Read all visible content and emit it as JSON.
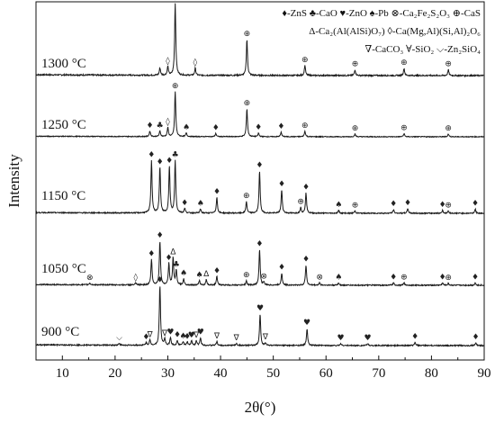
{
  "chart_data": {
    "type": "line",
    "xlabel": "2θ(°)",
    "ylabel": "Intensity",
    "xlim": [
      5,
      90
    ],
    "xticks": [
      "10",
      "20",
      "30",
      "40",
      "50",
      "60",
      "70",
      "80",
      "90"
    ],
    "xtick_values": [
      10,
      20,
      30,
      40,
      50,
      60,
      70,
      80,
      90
    ],
    "grid": false,
    "legend_placement": "top-right",
    "phases": [
      {
        "symbol": "♦",
        "label": "-ZnS",
        "marker_icon": "diamond-icon"
      },
      {
        "symbol": "♣",
        "label": "-CaO",
        "marker_icon": "club-icon"
      },
      {
        "symbol": "♥",
        "label": "-ZnO",
        "marker_icon": "heart-icon"
      },
      {
        "symbol": "♠",
        "label": "-Pb",
        "marker_icon": "spade-icon"
      },
      {
        "symbol": "⊗",
        "label": "-Ca₂Fe₂S₂O₃",
        "marker_icon": "circle-times-icon"
      },
      {
        "symbol": "⊕",
        "label": "-CaS",
        "marker_icon": "circle-plus-icon"
      },
      {
        "symbol": "Δ",
        "label": "-Ca₂(Al(AlSi)O₇)",
        "marker_icon": "triangle-icon"
      },
      {
        "symbol": "◊",
        "label": "-Ca(Mg,Al)(Si,Al)₂O₆",
        "marker_icon": "lozenge-icon"
      },
      {
        "symbol": "∇",
        "label": "-CaCO₃",
        "marker_icon": "nabla-icon"
      },
      {
        "symbol": "∀",
        "label": "-SiO₂",
        "marker_icon": "forall-icon"
      },
      {
        "symbol": "⌵",
        "label": "-Zn₂SiO₄",
        "marker_icon": "chevron-icon"
      }
    ],
    "series": [
      {
        "name": "1300 °C",
        "peaks": [
          {
            "x": 28.5,
            "h": 0.1
          },
          {
            "x": 30.0,
            "h": 0.12
          },
          {
            "x": 31.4,
            "h": 1.0
          },
          {
            "x": 35.2,
            "h": 0.1
          },
          {
            "x": 45.0,
            "h": 0.5
          },
          {
            "x": 56.0,
            "h": 0.14
          },
          {
            "x": 65.5,
            "h": 0.08
          },
          {
            "x": 74.8,
            "h": 0.1
          },
          {
            "x": 83.2,
            "h": 0.08
          }
        ],
        "markers": [
          {
            "x": 31.4,
            "s": "⊕"
          },
          {
            "x": 30.0,
            "s": "◊"
          },
          {
            "x": 35.2,
            "s": "◊"
          },
          {
            "x": 45.0,
            "s": "⊕"
          },
          {
            "x": 56.0,
            "s": "⊕"
          },
          {
            "x": 65.5,
            "s": "⊕"
          },
          {
            "x": 74.8,
            "s": "⊕"
          },
          {
            "x": 83.2,
            "s": "⊕"
          }
        ]
      },
      {
        "name": "1250 °C",
        "peaks": [
          {
            "x": 26.6,
            "h": 0.12
          },
          {
            "x": 28.5,
            "h": 0.12
          },
          {
            "x": 30.0,
            "h": 0.2
          },
          {
            "x": 31.4,
            "h": 1.0
          },
          {
            "x": 33.5,
            "h": 0.08
          },
          {
            "x": 39.1,
            "h": 0.07
          },
          {
            "x": 45.0,
            "h": 0.62
          },
          {
            "x": 47.2,
            "h": 0.08
          },
          {
            "x": 51.5,
            "h": 0.1
          },
          {
            "x": 56.0,
            "h": 0.12
          },
          {
            "x": 65.5,
            "h": 0.06
          },
          {
            "x": 74.8,
            "h": 0.07
          },
          {
            "x": 83.2,
            "h": 0.06
          }
        ],
        "markers": [
          {
            "x": 26.6,
            "s": "♦"
          },
          {
            "x": 28.5,
            "s": "♣"
          },
          {
            "x": 30.0,
            "s": "◊"
          },
          {
            "x": 31.4,
            "s": "⊕"
          },
          {
            "x": 33.5,
            "s": "♠"
          },
          {
            "x": 39.1,
            "s": "♦"
          },
          {
            "x": 45.0,
            "s": "⊕"
          },
          {
            "x": 47.2,
            "s": "♦"
          },
          {
            "x": 51.5,
            "s": "♦"
          },
          {
            "x": 56.0,
            "s": "⊕"
          },
          {
            "x": 65.5,
            "s": "⊕"
          },
          {
            "x": 74.8,
            "s": "⊕"
          },
          {
            "x": 83.2,
            "s": "⊕"
          }
        ]
      },
      {
        "name": "1150 °C",
        "peaks": [
          {
            "x": 26.9,
            "h": 0.9
          },
          {
            "x": 28.5,
            "h": 0.78
          },
          {
            "x": 30.3,
            "h": 0.8
          },
          {
            "x": 31.4,
            "h": 0.9
          },
          {
            "x": 33.2,
            "h": 0.08
          },
          {
            "x": 36.2,
            "h": 0.07
          },
          {
            "x": 39.3,
            "h": 0.27
          },
          {
            "x": 44.9,
            "h": 0.2
          },
          {
            "x": 47.4,
            "h": 0.72
          },
          {
            "x": 51.6,
            "h": 0.4
          },
          {
            "x": 55.2,
            "h": 0.1
          },
          {
            "x": 56.2,
            "h": 0.35
          },
          {
            "x": 62.4,
            "h": 0.05
          },
          {
            "x": 65.5,
            "h": 0.04
          },
          {
            "x": 72.8,
            "h": 0.06
          },
          {
            "x": 75.5,
            "h": 0.08
          },
          {
            "x": 82.1,
            "h": 0.05
          },
          {
            "x": 83.2,
            "h": 0.04
          },
          {
            "x": 88.3,
            "h": 0.07
          }
        ],
        "markers": [
          {
            "x": 26.9,
            "s": "♦"
          },
          {
            "x": 28.5,
            "s": "♦"
          },
          {
            "x": 30.3,
            "s": "♦"
          },
          {
            "x": 31.4,
            "s": "♣"
          },
          {
            "x": 33.2,
            "s": "♦"
          },
          {
            "x": 36.2,
            "s": "♠"
          },
          {
            "x": 39.3,
            "s": "♦"
          },
          {
            "x": 44.9,
            "s": "⊕"
          },
          {
            "x": 47.4,
            "s": "♦"
          },
          {
            "x": 51.6,
            "s": "♦"
          },
          {
            "x": 55.2,
            "s": "⊕"
          },
          {
            "x": 56.2,
            "s": "♦"
          },
          {
            "x": 62.4,
            "s": "♠"
          },
          {
            "x": 65.5,
            "s": "⊕"
          },
          {
            "x": 72.8,
            "s": "♦"
          },
          {
            "x": 75.5,
            "s": "♦"
          },
          {
            "x": 82.1,
            "s": "♦"
          },
          {
            "x": 83.2,
            "s": "⊕"
          },
          {
            "x": 88.3,
            "s": "♦"
          }
        ]
      },
      {
        "name": "1050 °C",
        "peaks": [
          {
            "x": 15.2,
            "h": 0.03
          },
          {
            "x": 23.9,
            "h": 0.03
          },
          {
            "x": 26.9,
            "h": 0.42
          },
          {
            "x": 28.5,
            "h": 0.72
          },
          {
            "x": 30.2,
            "h": 0.35
          },
          {
            "x": 31.0,
            "h": 0.45
          },
          {
            "x": 31.6,
            "h": 0.24
          },
          {
            "x": 33.0,
            "h": 0.1
          },
          {
            "x": 36.0,
            "h": 0.07
          },
          {
            "x": 37.3,
            "h": 0.09
          },
          {
            "x": 39.3,
            "h": 0.14
          },
          {
            "x": 44.9,
            "h": 0.07
          },
          {
            "x": 47.4,
            "h": 0.58
          },
          {
            "x": 48.2,
            "h": 0.05
          },
          {
            "x": 51.6,
            "h": 0.2
          },
          {
            "x": 56.2,
            "h": 0.33
          },
          {
            "x": 58.8,
            "h": 0.04
          },
          {
            "x": 62.4,
            "h": 0.04
          },
          {
            "x": 72.8,
            "h": 0.04
          },
          {
            "x": 74.8,
            "h": 0.04
          },
          {
            "x": 82.1,
            "h": 0.04
          },
          {
            "x": 83.2,
            "h": 0.03
          },
          {
            "x": 88.3,
            "h": 0.04
          }
        ],
        "markers": [
          {
            "x": 15.2,
            "s": "⊗"
          },
          {
            "x": 23.9,
            "s": "◊"
          },
          {
            "x": 26.9,
            "s": "♦"
          },
          {
            "x": 28.5,
            "s": "♦"
          },
          {
            "x": 30.2,
            "s": "♦"
          },
          {
            "x": 31.0,
            "s": "Δ"
          },
          {
            "x": 31.6,
            "s": "♣"
          },
          {
            "x": 33.0,
            "s": "♠"
          },
          {
            "x": 36.0,
            "s": "♠"
          },
          {
            "x": 37.3,
            "s": "Δ"
          },
          {
            "x": 39.3,
            "s": "♦"
          },
          {
            "x": 44.9,
            "s": "⊕"
          },
          {
            "x": 47.4,
            "s": "♦"
          },
          {
            "x": 48.2,
            "s": "⊗"
          },
          {
            "x": 51.6,
            "s": "♦"
          },
          {
            "x": 56.2,
            "s": "♦"
          },
          {
            "x": 58.8,
            "s": "⊗"
          },
          {
            "x": 62.4,
            "s": "♠"
          },
          {
            "x": 72.8,
            "s": "♦"
          },
          {
            "x": 74.8,
            "s": "⊕"
          },
          {
            "x": 82.1,
            "s": "♦"
          },
          {
            "x": 83.2,
            "s": "⊕"
          },
          {
            "x": 88.3,
            "s": "♦"
          }
        ]
      },
      {
        "name": "900 °C",
        "peaks": [
          {
            "x": 20.8,
            "h": 0.03
          },
          {
            "x": 25.9,
            "h": 0.04
          },
          {
            "x": 26.6,
            "h": 0.08
          },
          {
            "x": 28.5,
            "h": 0.95
          },
          {
            "x": 29.4,
            "h": 0.1
          },
          {
            "x": 30.5,
            "h": 0.12
          },
          {
            "x": 31.8,
            "h": 0.08
          },
          {
            "x": 32.9,
            "h": 0.06
          },
          {
            "x": 33.7,
            "h": 0.05
          },
          {
            "x": 34.5,
            "h": 0.07
          },
          {
            "x": 35.4,
            "h": 0.07
          },
          {
            "x": 36.2,
            "h": 0.12
          },
          {
            "x": 39.3,
            "h": 0.06
          },
          {
            "x": 43.0,
            "h": 0.03
          },
          {
            "x": 47.5,
            "h": 0.5
          },
          {
            "x": 48.5,
            "h": 0.04
          },
          {
            "x": 56.4,
            "h": 0.27
          },
          {
            "x": 62.8,
            "h": 0.03
          },
          {
            "x": 67.9,
            "h": 0.03
          },
          {
            "x": 76.9,
            "h": 0.05
          },
          {
            "x": 88.4,
            "h": 0.04
          }
        ],
        "markers": [
          {
            "x": 20.8,
            "s": "⌵"
          },
          {
            "x": 25.9,
            "s": "♦"
          },
          {
            "x": 26.6,
            "s": "∇"
          },
          {
            "x": 28.5,
            "s": "♦"
          },
          {
            "x": 29.4,
            "s": "∇"
          },
          {
            "x": 30.5,
            "s": "♥"
          },
          {
            "x": 31.8,
            "s": "♦"
          },
          {
            "x": 32.9,
            "s": "♠"
          },
          {
            "x": 33.7,
            "s": "♦"
          },
          {
            "x": 34.5,
            "s": "♥"
          },
          {
            "x": 35.4,
            "s": "∇"
          },
          {
            "x": 36.2,
            "s": "♥"
          },
          {
            "x": 39.3,
            "s": "∇"
          },
          {
            "x": 43.0,
            "s": "∇"
          },
          {
            "x": 47.5,
            "s": "♥"
          },
          {
            "x": 48.5,
            "s": "∇"
          },
          {
            "x": 56.4,
            "s": "♥"
          },
          {
            "x": 62.8,
            "s": "♥"
          },
          {
            "x": 67.9,
            "s": "♥"
          },
          {
            "x": 76.9,
            "s": "♦"
          },
          {
            "x": 88.4,
            "s": "♦"
          }
        ]
      }
    ]
  }
}
